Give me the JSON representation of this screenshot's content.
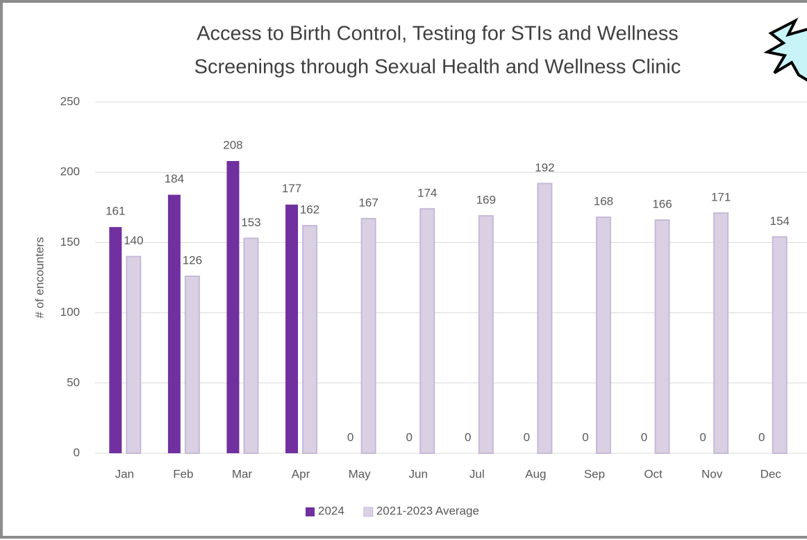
{
  "chart_data": {
    "type": "bar",
    "title": [
      "Access to Birth Control, Testing for STIs and Wellness",
      "Screenings through Sexual Health and Wellness Clinic"
    ],
    "y_label": "# of encounters",
    "categories": [
      "Jan",
      "Feb",
      "Mar",
      "Apr",
      "May",
      "Jun",
      "Jul",
      "Aug",
      "Sep",
      "Oct",
      "Nov",
      "Dec"
    ],
    "series": [
      {
        "name": "2024",
        "color": "#7030a0",
        "values": [
          161,
          184,
          208,
          177,
          0,
          0,
          0,
          0,
          0,
          0,
          0,
          0
        ]
      },
      {
        "name": "2021-2023 Average",
        "color": "#d9d0e3",
        "values": [
          140,
          126,
          153,
          162,
          167,
          174,
          169,
          192,
          168,
          166,
          171,
          154
        ]
      }
    ],
    "ylim": [
      0,
      250
    ],
    "yticks": [
      0,
      50,
      100,
      150,
      200,
      250
    ],
    "grid": true,
    "legend": "bottom"
  }
}
